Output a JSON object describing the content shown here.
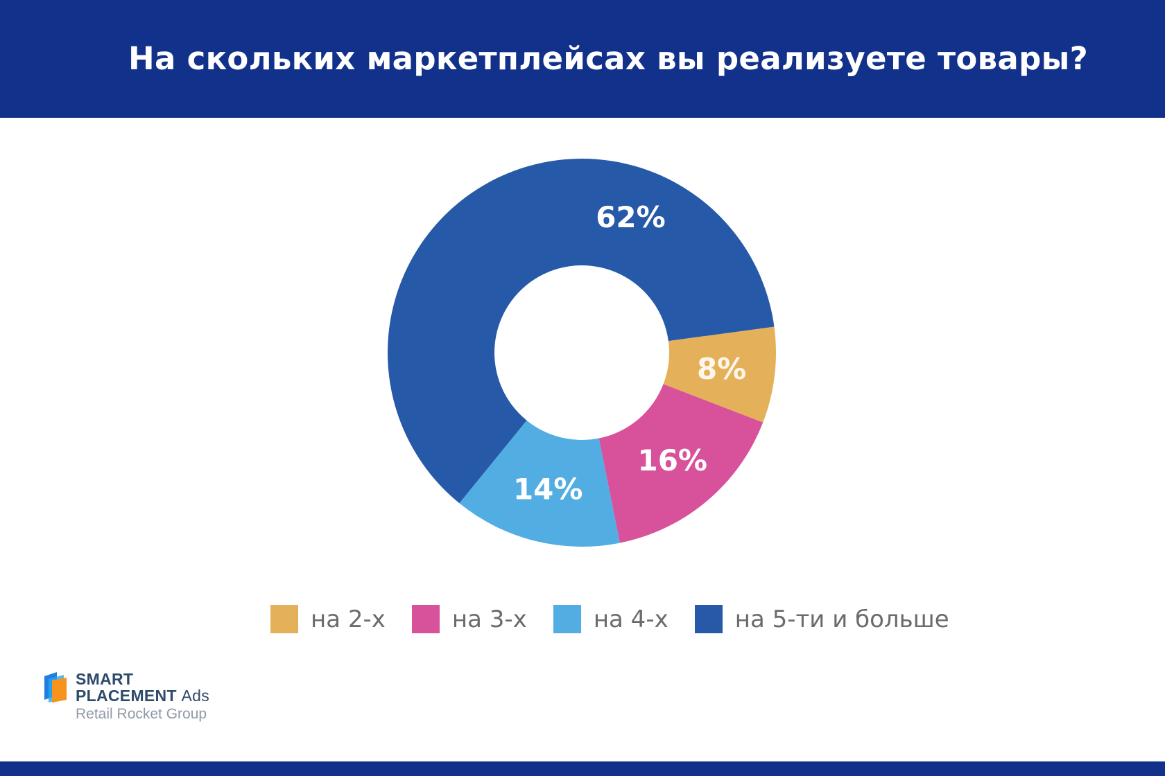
{
  "chart_data": {
    "type": "pie",
    "variant": "donut",
    "title": "На скольких маркетплейсах вы реализуете товары?",
    "categories": [
      "на 2-х",
      "на 3-х",
      "на 4-х",
      "на 5-ти и больше"
    ],
    "values": [
      8,
      16,
      14,
      62
    ],
    "data_labels": [
      "8%",
      "16%",
      "14%",
      "62%"
    ],
    "colors": [
      "#e5b05a",
      "#d8519b",
      "#52ade3",
      "#2659a8"
    ],
    "legend_position": "bottom"
  },
  "logo": {
    "line1": "SMART",
    "line2": "PLACEMENT",
    "line2b": "Ads",
    "line3": "Retail Rocket Group"
  },
  "colors": {
    "header": "#12318a"
  }
}
